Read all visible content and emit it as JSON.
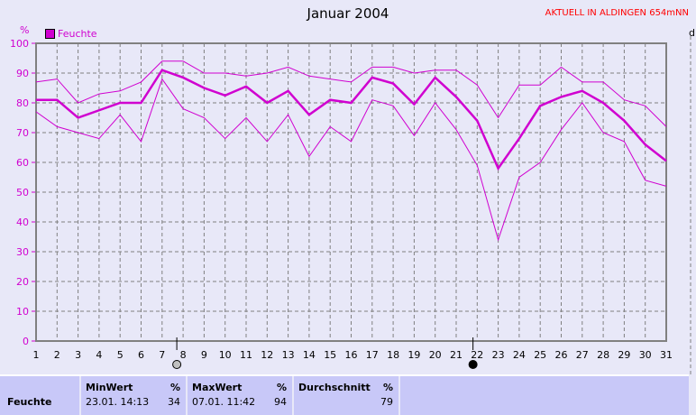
{
  "header": {
    "title": "Januar 2004",
    "current": "AKTUELL IN ALDINGEN 654mNN",
    "unit": "%",
    "right_axis_label": "d"
  },
  "chart_data": {
    "type": "line",
    "title": "Januar 2004",
    "ylabel": "%",
    "ylim": [
      0,
      100
    ],
    "yticks": [
      0,
      10,
      20,
      30,
      40,
      50,
      60,
      70,
      80,
      90,
      100
    ],
    "x": [
      1,
      2,
      3,
      4,
      5,
      6,
      7,
      8,
      9,
      10,
      11,
      12,
      13,
      14,
      15,
      16,
      17,
      18,
      19,
      20,
      21,
      22,
      23,
      24,
      25,
      26,
      27,
      28,
      29,
      30,
      31
    ],
    "grid": true,
    "legend": "top-left",
    "legend_entries": [
      "Feuchte"
    ],
    "color": "#d000d0",
    "series": [
      {
        "name": "Feuchte",
        "role": "mean",
        "values": [
          81,
          81,
          75,
          77.5,
          80,
          80,
          91,
          88.5,
          85,
          82.5,
          85.5,
          80,
          84,
          76,
          81,
          80,
          88.5,
          86.5,
          79.5,
          88.5,
          82,
          74,
          58,
          68,
          79,
          82,
          84,
          80,
          74,
          66,
          60.5
        ]
      },
      {
        "role": "max",
        "values": [
          87,
          88,
          80,
          83,
          84,
          87,
          94,
          94,
          90,
          90,
          89,
          90,
          92,
          89,
          88,
          87,
          92,
          92,
          90,
          91,
          91,
          86,
          75,
          86,
          86,
          92,
          87,
          87,
          81,
          79,
          72
        ]
      },
      {
        "role": "min",
        "values": [
          77,
          72,
          70,
          68,
          76,
          67,
          88,
          78,
          75,
          68,
          75,
          67,
          76,
          62,
          72,
          67,
          81,
          79,
          69,
          80,
          71,
          59,
          34,
          55,
          60,
          71,
          80,
          70,
          67,
          54,
          52
        ]
      }
    ],
    "moon_phases": [
      {
        "day": 7.7,
        "phase": "full-moon"
      },
      {
        "day": 21.8,
        "phase": "new-moon"
      }
    ]
  },
  "table": {
    "row_label": "Feuchte",
    "min": {
      "header": "MinWert",
      "unit": "%",
      "date": "23.01.  14:13",
      "value": "34"
    },
    "max": {
      "header": "MaxWert",
      "unit": "%",
      "date": "07.01.  11:42",
      "value": "94"
    },
    "avg": {
      "header": "Durchschnitt",
      "unit": "%",
      "value": "79"
    }
  }
}
